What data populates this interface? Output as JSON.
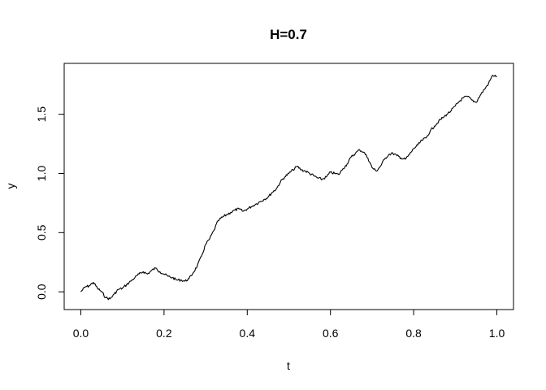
{
  "chart_data": {
    "type": "line",
    "title": "H=0.7",
    "xlabel": "t",
    "ylabel": "y",
    "xlim": [
      -0.04,
      1.04
    ],
    "ylim": [
      -0.15,
      1.93
    ],
    "xticks": [
      0.0,
      0.2,
      0.4,
      0.6,
      0.8,
      1.0
    ],
    "xtick_labels": [
      "0.0",
      "0.2",
      "0.4",
      "0.6",
      "0.8",
      "1.0"
    ],
    "yticks": [
      0.0,
      0.5,
      1.0,
      1.5
    ],
    "ytick_labels": [
      "0.0",
      "0.5",
      "1.0",
      "1.5"
    ],
    "grid": false,
    "series": [
      {
        "x": [
          0.0,
          0.01,
          0.02,
          0.03,
          0.04,
          0.05,
          0.06,
          0.07,
          0.08,
          0.09,
          0.1,
          0.11,
          0.12,
          0.13,
          0.14,
          0.15,
          0.16,
          0.17,
          0.18,
          0.19,
          0.2,
          0.21,
          0.22,
          0.23,
          0.24,
          0.25,
          0.26,
          0.27,
          0.28,
          0.29,
          0.3,
          0.31,
          0.32,
          0.33,
          0.34,
          0.35,
          0.36,
          0.37,
          0.38,
          0.39,
          0.4,
          0.41,
          0.42,
          0.43,
          0.44,
          0.45,
          0.46,
          0.47,
          0.48,
          0.49,
          0.5,
          0.51,
          0.52,
          0.53,
          0.54,
          0.55,
          0.56,
          0.57,
          0.58,
          0.59,
          0.6,
          0.61,
          0.62,
          0.63,
          0.64,
          0.65,
          0.66,
          0.67,
          0.68,
          0.69,
          0.7,
          0.71,
          0.72,
          0.73,
          0.74,
          0.75,
          0.76,
          0.77,
          0.78,
          0.79,
          0.8,
          0.81,
          0.82,
          0.83,
          0.84,
          0.85,
          0.86,
          0.87,
          0.88,
          0.89,
          0.9,
          0.91,
          0.92,
          0.93,
          0.94,
          0.95,
          0.96,
          0.97,
          0.98,
          0.99,
          1.0
        ],
        "y": [
          0.0,
          0.04,
          0.05,
          0.08,
          0.03,
          0.0,
          -0.05,
          -0.06,
          -0.02,
          0.02,
          0.03,
          0.06,
          0.09,
          0.12,
          0.15,
          0.17,
          0.15,
          0.18,
          0.2,
          0.17,
          0.15,
          0.13,
          0.12,
          0.1,
          0.1,
          0.09,
          0.11,
          0.16,
          0.22,
          0.3,
          0.4,
          0.45,
          0.52,
          0.6,
          0.63,
          0.65,
          0.67,
          0.69,
          0.7,
          0.68,
          0.7,
          0.72,
          0.74,
          0.76,
          0.78,
          0.8,
          0.84,
          0.87,
          0.93,
          0.97,
          1.0,
          1.03,
          1.06,
          1.03,
          1.02,
          1.0,
          0.98,
          0.96,
          0.95,
          0.97,
          1.01,
          1.0,
          0.99,
          1.04,
          1.08,
          1.14,
          1.17,
          1.2,
          1.18,
          1.13,
          1.05,
          1.02,
          1.06,
          1.12,
          1.16,
          1.17,
          1.15,
          1.13,
          1.12,
          1.16,
          1.21,
          1.24,
          1.28,
          1.3,
          1.36,
          1.4,
          1.44,
          1.47,
          1.5,
          1.53,
          1.57,
          1.61,
          1.64,
          1.65,
          1.62,
          1.6,
          1.66,
          1.71,
          1.76,
          1.83,
          1.82
        ]
      }
    ]
  }
}
